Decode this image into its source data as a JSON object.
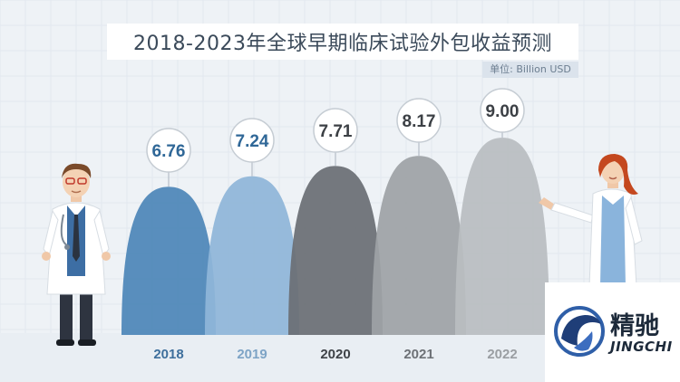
{
  "colors": {
    "background": "#eef2f6",
    "title_text": "#3b4a5a",
    "year_2018": "#4d87b8",
    "year_2019": "#8fb6d8",
    "year_2020": "#6b6f74",
    "year_2021": "#9ea2a6",
    "year_2022": "#b9bdc1"
  },
  "chart_data": {
    "type": "bar",
    "title": "2018-2023年全球早期临床试验外包收益预测",
    "unit": "单位: Billion USD",
    "categories": [
      "2018",
      "2019",
      "2020",
      "2021",
      "2022"
    ],
    "values": [
      6.76,
      7.24,
      7.71,
      8.17,
      9.0
    ],
    "value_labels": [
      "6.76",
      "7.24",
      "7.71",
      "8.17",
      "9.00"
    ],
    "ylim": [
      0,
      9.5
    ],
    "grid": true,
    "legend": "none"
  },
  "logo": {
    "name": "精驰",
    "sub": "JINGCHI"
  },
  "icons": [
    "doctor-male-icon",
    "doctor-female-icon",
    "jingchi-horse-logo-icon"
  ]
}
